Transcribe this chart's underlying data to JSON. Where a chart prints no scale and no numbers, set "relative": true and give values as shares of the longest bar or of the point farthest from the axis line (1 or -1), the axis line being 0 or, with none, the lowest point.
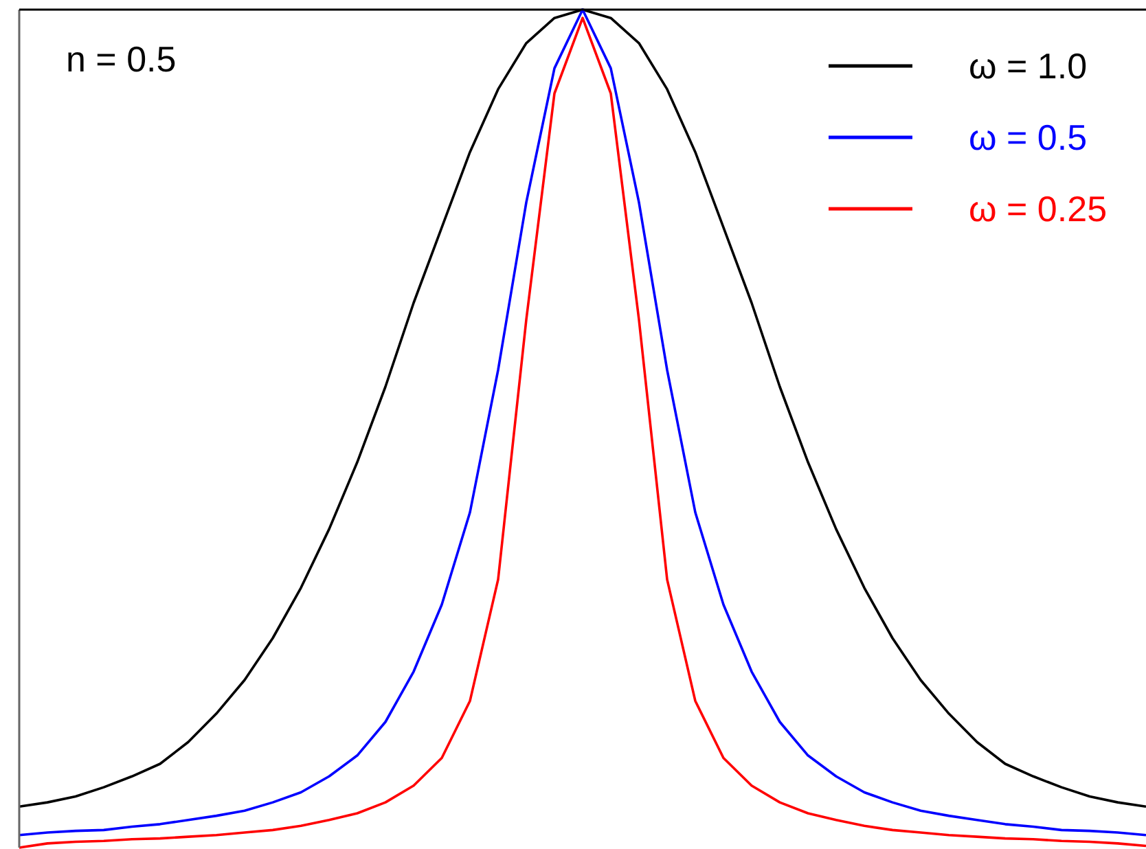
{
  "chart_data": {
    "type": "line",
    "relative": true,
    "categories": [
      null,
      null,
      null,
      null,
      null,
      null,
      null,
      null,
      null,
      null,
      null,
      null,
      null,
      null,
      null,
      null,
      null,
      null,
      null,
      null,
      null,
      null,
      null,
      null,
      null,
      null,
      null,
      null,
      null,
      null,
      null,
      null,
      null,
      null,
      null,
      null,
      null,
      null,
      null,
      null,
      null
    ],
    "series": [
      {
        "name": "ω = 1.0",
        "color": "#000000",
        "values": [
          0.049,
          0.054,
          0.061,
          0.072,
          0.085,
          0.1,
          0.126,
          0.16,
          0.2,
          0.25,
          0.31,
          0.38,
          0.46,
          0.55,
          0.65,
          0.74,
          0.83,
          0.905,
          0.96,
          0.99,
          1.0,
          0.99,
          0.96,
          0.905,
          0.83,
          0.74,
          0.65,
          0.55,
          0.46,
          0.38,
          0.31,
          0.25,
          0.2,
          0.16,
          0.126,
          0.1,
          0.085,
          0.072,
          0.061,
          0.054,
          0.049
        ]
      },
      {
        "name": "ω = 0.5",
        "color": "#0000ff",
        "values": [
          0.015,
          0.018,
          0.02,
          0.021,
          0.025,
          0.028,
          0.033,
          0.038,
          0.044,
          0.054,
          0.066,
          0.085,
          0.11,
          0.15,
          0.21,
          0.29,
          0.4,
          0.57,
          0.77,
          0.93,
          1.0,
          0.93,
          0.77,
          0.57,
          0.4,
          0.29,
          0.21,
          0.15,
          0.11,
          0.085,
          0.066,
          0.054,
          0.044,
          0.038,
          0.033,
          0.028,
          0.025,
          0.021,
          0.02,
          0.018,
          0.015
        ]
      },
      {
        "name": "ω = 0.25",
        "color": "#ff0000",
        "values": [
          0,
          0.005,
          0.007,
          0.008,
          0.01,
          0.011,
          0.013,
          0.015,
          0.018,
          0.021,
          0.026,
          0.033,
          0.041,
          0.054,
          0.074,
          0.107,
          0.175,
          0.32,
          0.63,
          0.9,
          0.99,
          0.9,
          0.63,
          0.32,
          0.175,
          0.107,
          0.074,
          0.054,
          0.041,
          0.033,
          0.026,
          0.021,
          0.018,
          0.015,
          0.013,
          0.011,
          0.01,
          0.008,
          0.007,
          0.005,
          0.002
        ]
      }
    ],
    "annotations": [
      "n = 0.5"
    ],
    "legend": "top right",
    "line_style": "solid"
  }
}
